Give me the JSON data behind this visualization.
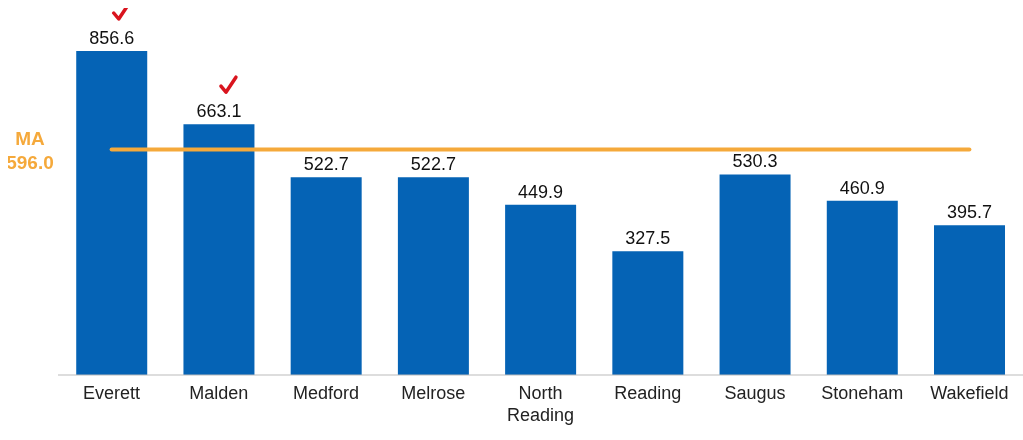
{
  "chart_data": {
    "type": "bar",
    "categories": [
      "Everett",
      "Malden",
      "Medford",
      "Melrose",
      "North Reading",
      "Reading",
      "Saugus",
      "Stoneham",
      "Wakefield"
    ],
    "values": [
      856.6,
      663.1,
      522.7,
      522.7,
      449.9,
      327.5,
      530.3,
      460.9,
      395.7
    ],
    "color": "#0563b5",
    "data_labels": true,
    "grid": false,
    "legend": false,
    "ref_lines": [
      {
        "axis": "y",
        "value": 596.0,
        "label": "MA 596.0",
        "color": "#f5a93b",
        "line_style": "solid"
      }
    ]
  }
}
